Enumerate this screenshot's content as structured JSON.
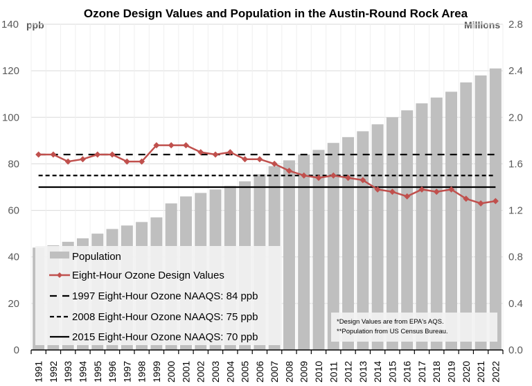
{
  "chart_data": {
    "type": "bar+line",
    "title": "Ozone Design Values and Population in the Austin-Round Rock Area",
    "left_axis": {
      "unit_label": "ppb",
      "ylim": [
        0,
        140
      ],
      "ticks": [
        "0",
        "20",
        "40",
        "60",
        "80",
        "100",
        "120",
        "140"
      ]
    },
    "right_axis": {
      "unit_label": "Millions",
      "ylim": [
        0,
        2.8
      ],
      "ticks": [
        "0.0",
        "0.4",
        "0.8",
        "1.2",
        "1.6",
        "2.0",
        "2.4",
        "2.8"
      ]
    },
    "categories": [
      "1991",
      "1992",
      "1993",
      "1994",
      "1995",
      "1996",
      "1997",
      "1998",
      "1999",
      "2000",
      "2001",
      "2002",
      "2003",
      "2004",
      "2005",
      "2006",
      "2007",
      "2008",
      "2009",
      "2010",
      "2011",
      "2012",
      "2013",
      "2014",
      "2015",
      "2016",
      "2017",
      "2018",
      "2019",
      "2020",
      "2021",
      "2022"
    ],
    "series": [
      {
        "name": "Population",
        "type": "bar",
        "axis": "right",
        "color": "#bfbfbf",
        "values": [
          0.88,
          0.9,
          0.93,
          0.96,
          1.0,
          1.04,
          1.07,
          1.1,
          1.14,
          1.26,
          1.32,
          1.35,
          1.38,
          1.41,
          1.45,
          1.51,
          1.58,
          1.63,
          1.68,
          1.72,
          1.78,
          1.83,
          1.88,
          1.94,
          2.0,
          2.06,
          2.12,
          2.17,
          2.22,
          2.3,
          2.36,
          2.42
        ]
      },
      {
        "name": "Eight-Hour Ozone Design Values",
        "type": "line",
        "axis": "left",
        "color": "#c0504d",
        "values": [
          84,
          84,
          81,
          82,
          84,
          84,
          81,
          81,
          88,
          88,
          88,
          85,
          84,
          85,
          82,
          82,
          80,
          77,
          75,
          74,
          75,
          74,
          73,
          69,
          68,
          66,
          69,
          68,
          69,
          65,
          63,
          64
        ]
      },
      {
        "name": "1997 Eight-Hour Ozone NAAQS: 84 ppb",
        "type": "hline",
        "axis": "left",
        "value": 84,
        "style": "long-dash",
        "color": "#000000"
      },
      {
        "name": "2008 Eight-Hour Ozone NAAQS: 75 ppb",
        "type": "hline",
        "axis": "left",
        "value": 75,
        "style": "short-dash",
        "color": "#000000"
      },
      {
        "name": "2015 Eight-Hour Ozone NAAQS: 70 ppb",
        "type": "hline",
        "axis": "left",
        "value": 70,
        "style": "solid",
        "color": "#000000"
      }
    ],
    "legend": [
      "Population",
      "Eight-Hour Ozone Design Values",
      "1997 Eight-Hour Ozone NAAQS: 84 ppb",
      "2008 Eight-Hour Ozone NAAQS: 75 ppb",
      "2015 Eight-Hour Ozone NAAQS: 70 ppb"
    ],
    "legend_position": "bottom-left",
    "notes": [
      "*Design Values are from EPA's AQS.",
      "**Population from US Census Bureau."
    ],
    "notes_position": "bottom-right",
    "grid": true
  }
}
